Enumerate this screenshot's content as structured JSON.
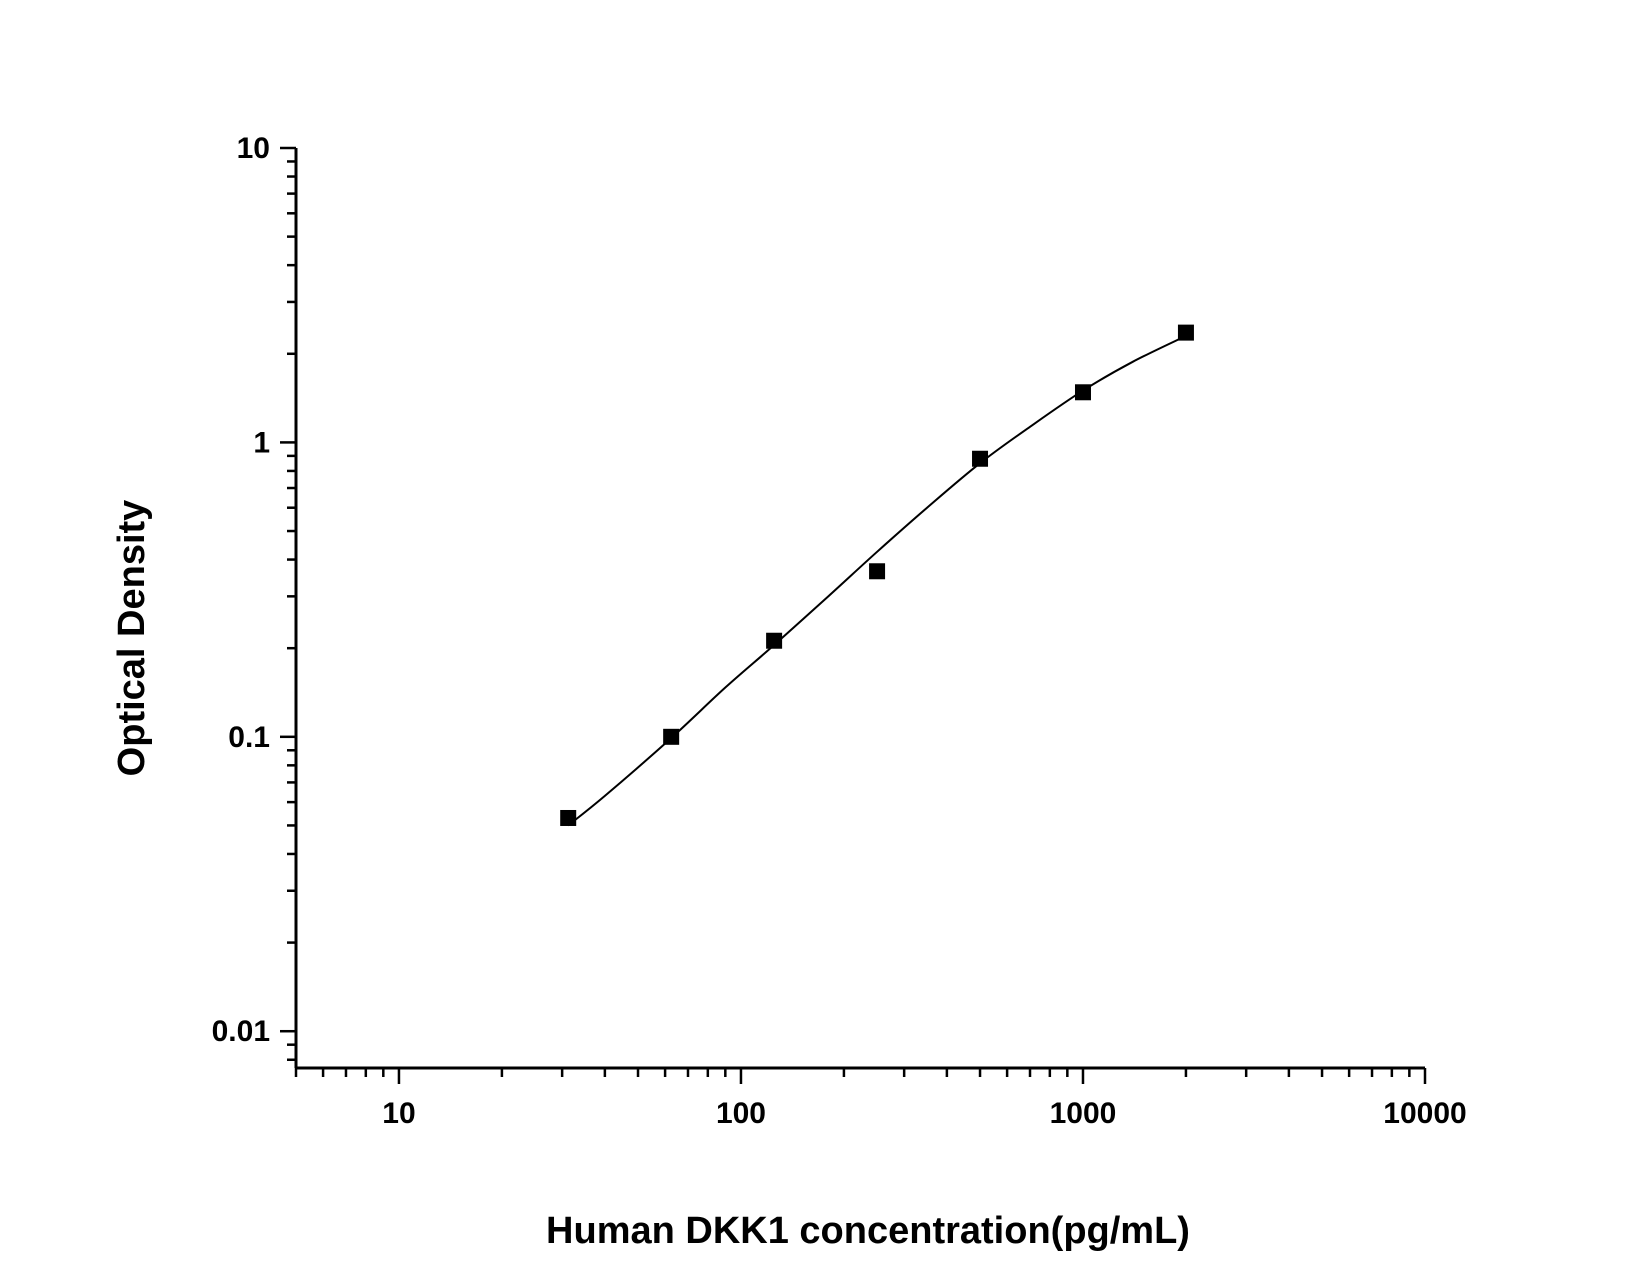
{
  "chart_data": {
    "type": "scatter",
    "title": "",
    "xlabel": "Human DKK1 concentration(pg/mL)",
    "ylabel": "Optical Density",
    "x_scale": "log",
    "y_scale": "log",
    "xlim": [
      5,
      10000
    ],
    "ylim": [
      0.0075,
      10
    ],
    "x_ticks": [
      10,
      100,
      1000,
      10000
    ],
    "x_tick_labels": [
      "10",
      "100",
      "1000",
      "10000"
    ],
    "y_ticks": [
      0.01,
      0.1,
      1,
      10
    ],
    "y_tick_labels": [
      "0.01",
      "0.1",
      "1",
      "10"
    ],
    "grid": false,
    "legend": "none",
    "series": [
      {
        "marker": "square",
        "color": "#000000",
        "x": [
          31.25,
          62.5,
          125,
          250,
          500,
          1000,
          2000
        ],
        "y": [
          0.053,
          0.1,
          0.212,
          0.365,
          0.88,
          1.48,
          2.36
        ]
      }
    ],
    "fit_curve": {
      "color": "#000000",
      "x": [
        31.25,
        40,
        62.5,
        90,
        125,
        180,
        250,
        350,
        500,
        700,
        1000,
        1400,
        2000
      ],
      "y": [
        0.05,
        0.063,
        0.099,
        0.147,
        0.205,
        0.3,
        0.425,
        0.6,
        0.85,
        1.13,
        1.5,
        1.88,
        2.3
      ]
    }
  }
}
